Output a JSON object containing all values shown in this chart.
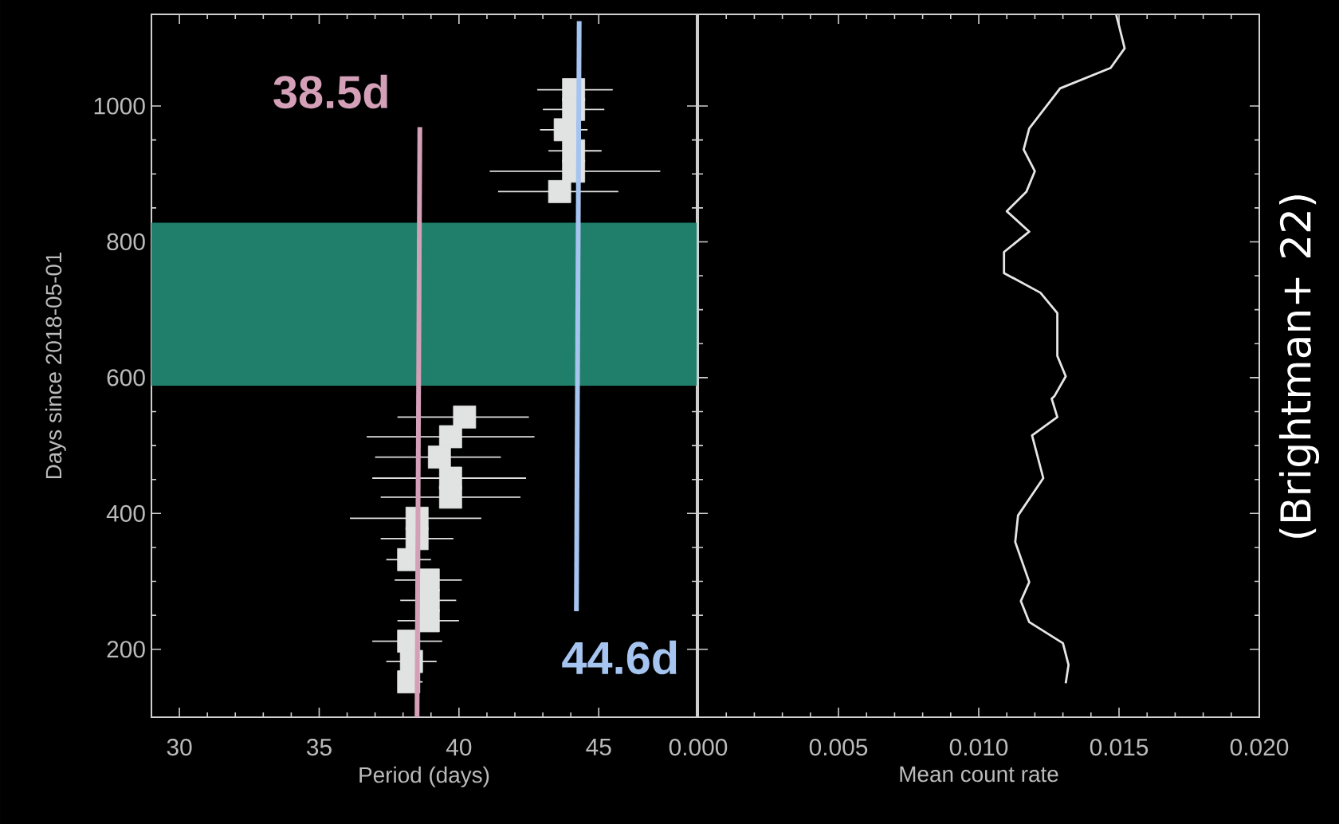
{
  "chart_data": [
    {
      "type": "scatter",
      "xlabel": "Period (days)",
      "ylabel": "Days since 2018-05-01",
      "xlim": [
        29,
        48.5
      ],
      "ylim": [
        100,
        1135
      ],
      "xticks": [
        30,
        35,
        40,
        45
      ],
      "yticks": [
        200,
        400,
        600,
        800,
        1000
      ],
      "bands": [
        {
          "axis": "y",
          "from": 588,
          "to": 828,
          "color": "#207f6a"
        }
      ],
      "series": [
        {
          "type": "scatter",
          "color": "#e0e3e1",
          "marker": "square",
          "x": [
            44.1,
            44.1,
            43.8,
            44.1,
            44.1,
            43.6,
            40.2,
            39.7,
            39.3,
            39.7,
            39.7,
            38.5,
            38.5,
            38.2,
            38.9,
            38.9,
            38.9,
            38.2,
            38.3,
            38.2
          ],
          "values": [
            1024,
            995,
            965,
            934,
            904,
            874,
            542,
            513,
            483,
            452,
            424,
            393,
            363,
            332,
            302,
            272,
            242,
            212,
            182,
            152
          ],
          "xerrors": [
            [
              42.8,
              45.5
            ],
            [
              43.0,
              45.2
            ],
            [
              42.9,
              44.6
            ],
            [
              43.2,
              45.1
            ],
            [
              41.1,
              47.2
            ],
            [
              41.4,
              45.7
            ],
            [
              37.8,
              42.5
            ],
            [
              36.7,
              42.7
            ],
            [
              37.0,
              41.5
            ],
            [
              36.9,
              42.4
            ],
            [
              37.2,
              42.2
            ],
            [
              36.1,
              40.8
            ],
            [
              37.2,
              39.8
            ],
            [
              37.4,
              39.0
            ],
            [
              37.7,
              40.1
            ],
            [
              37.9,
              39.9
            ],
            [
              37.8,
              40.0
            ],
            [
              36.9,
              39.4
            ],
            [
              37.4,
              39.2
            ],
            [
              37.9,
              38.7
            ]
          ]
        },
        {
          "type": "line",
          "color": "#d4a0b8",
          "x": [
            38.5,
            38.6
          ],
          "values": [
            100,
            969
          ]
        },
        {
          "type": "line",
          "color": "#a6c4f0",
          "x": [
            44.2,
            44.3
          ],
          "values": [
            256,
            1125
          ]
        }
      ],
      "annotations": [
        "38.5d",
        "44.6d"
      ]
    },
    {
      "type": "line",
      "xlabel": "Mean count rate",
      "xlim": [
        0,
        0.02
      ],
      "ylim": [
        100,
        1135
      ],
      "xticks": [
        {
          "value": 0,
          "label": "0.000"
        },
        0.005,
        {
          "value": 0.01,
          "label": "0.010"
        },
        0.015,
        {
          "value": 0.02,
          "label": "0.020"
        }
      ],
      "yticks": [
        200,
        400,
        600,
        800,
        1000
      ],
      "tick_labels": "x",
      "series": [
        {
          "color": "#e6e6e6",
          "x": [
            0.0149,
            0.015,
            0.0152,
            0.0147,
            0.0129,
            0.0118,
            0.0116,
            0.012,
            0.0117,
            0.011,
            0.0118,
            0.0109,
            0.0109,
            0.0122,
            0.0128,
            0.0128,
            0.0131,
            0.0127,
            0.0126,
            0.0128,
            0.0119,
            0.0123,
            0.0114,
            0.0113,
            0.0118,
            0.0115,
            0.0118,
            0.013,
            0.0132,
            0.0131
          ],
          "values": [
            1134,
            1118,
            1085,
            1056,
            1026,
            967,
            936,
            904,
            874,
            845,
            815,
            785,
            754,
            725,
            695,
            632,
            602,
            573,
            569,
            542,
            515,
            452,
            397,
            358,
            299,
            271,
            240,
            209,
            177,
            150
          ]
        }
      ],
      "annotations": [
        "(Brightman+ 22)"
      ]
    }
  ]
}
